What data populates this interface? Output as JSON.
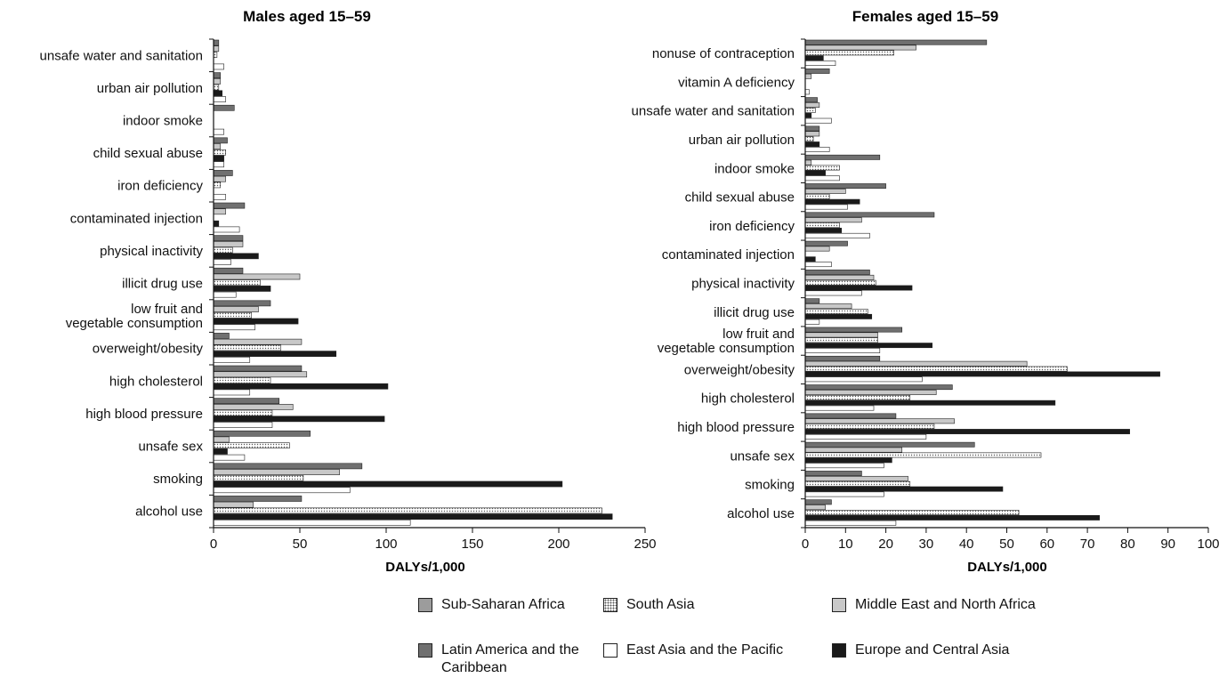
{
  "colors": {
    "Sub-Saharan Africa": "#9c9c9c",
    "South Asia": "#ffffff",
    "Middle East and North Africa": "#c8c8c8",
    "Latin America and the Caribbean": "#707070",
    "East Asia and the Pacific": "#ffffff",
    "Europe and Central Asia": "#1a1a1a"
  },
  "legend": [
    "Sub-Saharan Africa",
    "South Asia",
    "Middle East and North Africa",
    "Latin America and the\nCaribbean",
    "East Asia and the Pacific",
    "Europe and Central Asia"
  ],
  "chart_data": [
    {
      "type": "bar",
      "orientation": "horizontal",
      "title": "Males aged 15–59",
      "xlabel": "DALYs/1,000",
      "xlim": [
        0,
        250
      ],
      "xticks": [
        0,
        50,
        100,
        150,
        200,
        250
      ],
      "categories": [
        "unsafe water and sanitation",
        "urban air pollution",
        "indoor smoke",
        "child sexual abuse",
        "iron deficiency",
        "contaminated injection",
        "physical inactivity",
        "illicit drug use",
        "low fruit and\nvegetable consumption",
        "overweight/obesity",
        "high cholesterol",
        "high blood pressure",
        "unsafe sex",
        "smoking",
        "alcohol use"
      ],
      "series": [
        {
          "name": "Latin America and the Caribbean",
          "values": [
            3,
            4,
            12,
            8,
            11,
            18,
            17,
            17,
            33,
            9,
            51,
            38,
            56,
            86,
            51
          ]
        },
        {
          "name": "Middle East and North Africa",
          "values": [
            3,
            4,
            0,
            4,
            7,
            7,
            17,
            50,
            26,
            51,
            54,
            46,
            9,
            73,
            23
          ]
        },
        {
          "name": "South Asia",
          "values": [
            2,
            3,
            0,
            7,
            4,
            0,
            11,
            27,
            22,
            39,
            33,
            34,
            44,
            52,
            225
          ]
        },
        {
          "name": "Europe and Central Asia",
          "values": [
            0,
            5,
            0,
            6,
            0,
            3,
            26,
            33,
            49,
            71,
            101,
            99,
            8,
            202,
            231
          ]
        },
        {
          "name": "East Asia and the Pacific",
          "values": [
            6,
            7,
            6,
            6,
            7,
            15,
            10,
            13,
            24,
            21,
            21,
            34,
            18,
            79,
            114
          ]
        }
      ]
    },
    {
      "type": "bar",
      "orientation": "horizontal",
      "title": "Females aged 15–59",
      "xlabel": "DALYs/1,000",
      "xlim": [
        0,
        100
      ],
      "xticks": [
        0,
        10,
        20,
        30,
        40,
        50,
        60,
        70,
        80,
        90,
        100
      ],
      "categories": [
        "nonuse of contraception",
        "vitamin A deficiency",
        "unsafe water and sanitation",
        "urban air pollution",
        "indoor smoke",
        "child sexual abuse",
        "iron deficiency",
        "contaminated injection",
        "physical inactivity",
        "illicit drug use",
        "low fruit and\nvegetable consumption",
        "overweight/obesity",
        "high cholesterol",
        "high blood pressure",
        "unsafe sex",
        "smoking",
        "alcohol use"
      ],
      "series": [
        {
          "name": "Latin America and the Caribbean",
          "values": [
            45,
            6,
            3,
            3.5,
            18.5,
            20,
            32,
            10.5,
            16,
            3.5,
            24,
            18.5,
            36.5,
            22.5,
            42,
            14,
            6.5
          ]
        },
        {
          "name": "Middle East and North Africa",
          "values": [
            27.5,
            1.5,
            3.5,
            3.5,
            1.5,
            10,
            14,
            6,
            17,
            11.5,
            18,
            55,
            32.5,
            37,
            24,
            25.5,
            5
          ]
        },
        {
          "name": "South Asia",
          "values": [
            22,
            0,
            2.5,
            2,
            8.5,
            6,
            8.5,
            0,
            17.5,
            15.5,
            18,
            65,
            26,
            32,
            58.5,
            26,
            53
          ]
        },
        {
          "name": "Europe and Central Asia",
          "values": [
            4.5,
            0,
            1.5,
            3.5,
            5,
            13.5,
            9,
            2.5,
            26.5,
            16.5,
            31.5,
            88,
            62,
            80.5,
            21.5,
            49,
            73
          ]
        },
        {
          "name": "East Asia and the Pacific",
          "values": [
            7.5,
            1,
            6.5,
            6,
            8.5,
            10.5,
            16,
            6.5,
            14,
            3.5,
            18.5,
            29,
            17,
            30,
            19.5,
            19.5,
            22.5
          ]
        }
      ]
    }
  ]
}
